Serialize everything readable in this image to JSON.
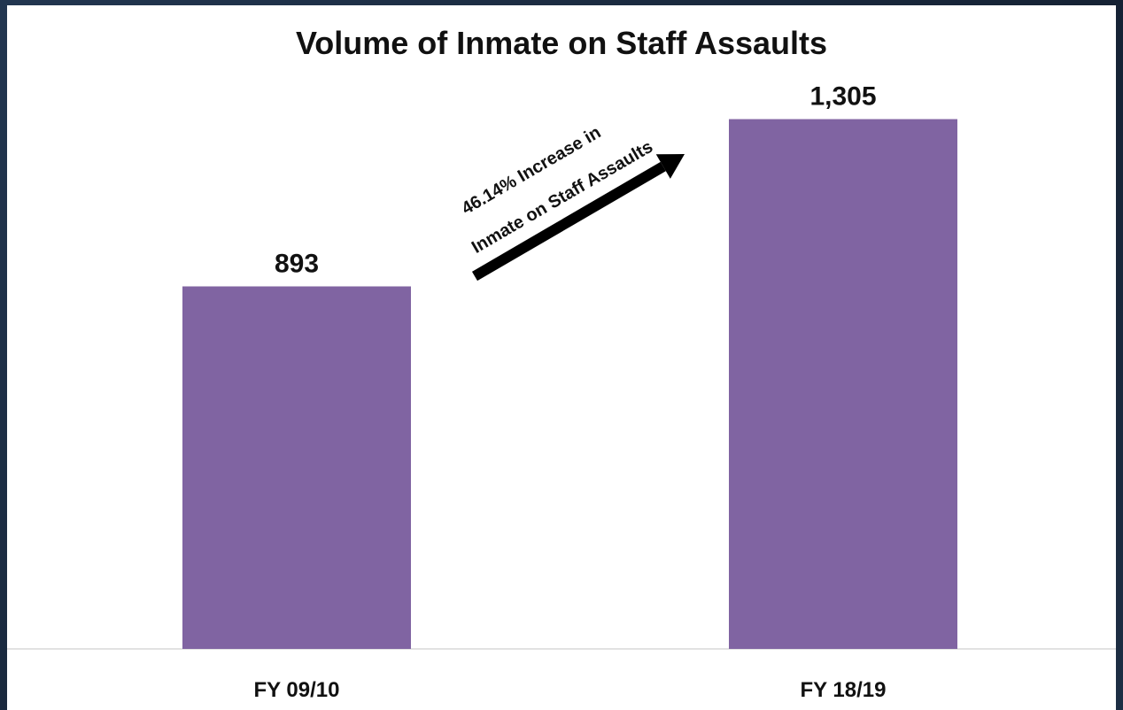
{
  "chart_data": {
    "type": "bar",
    "title": "Volume of Inmate on Staff Assaults",
    "categories": [
      "FY 09/10",
      "FY 18/19"
    ],
    "values": [
      893,
      1305
    ],
    "value_labels": [
      "893",
      "1,305"
    ],
    "ylim": [
      0,
      1400
    ],
    "grid": false,
    "xlabel": "",
    "ylabel": "",
    "annotation": {
      "line1": "46.14% Increase in",
      "line2": "Inmate on Staff Assaults"
    },
    "colors": {
      "bar": "#8064a2",
      "baseline": "#d9d9d9",
      "arrow": "#000000"
    }
  }
}
